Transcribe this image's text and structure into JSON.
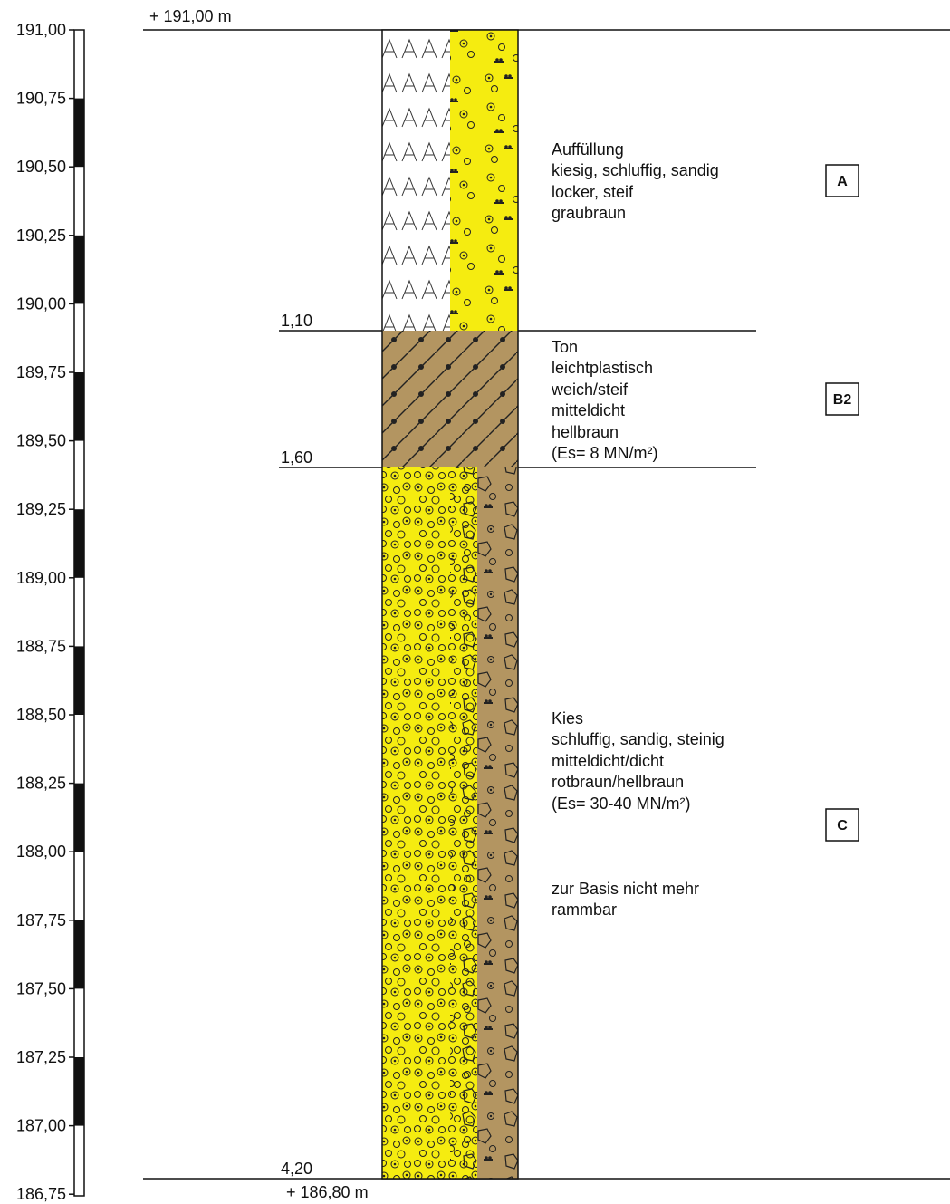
{
  "scale": {
    "ticks": [
      "191,00",
      "190,75",
      "190,50",
      "190,25",
      "190,00",
      "189,75",
      "189,50",
      "189,25",
      "189,00",
      "188,75",
      "188,50",
      "188,25",
      "188,00",
      "187,75",
      "187,50",
      "187,25",
      "187,00",
      "186,75"
    ]
  },
  "elevation": {
    "top": "+ 191,00 m",
    "bottom": "+ 186,80 m"
  },
  "layers": [
    {
      "code": "A",
      "base_depth_label": "1,10",
      "base_depth_m": 1.1,
      "description": [
        "Auffüllung",
        "kiesig, schluffig, sandig",
        "locker, steif",
        "graubraun"
      ]
    },
    {
      "code": "B2",
      "base_depth_label": "1,60",
      "base_depth_m": 1.6,
      "description": [
        "Ton",
        "leichtplastisch",
        "weich/steif",
        "mitteldicht",
        "hellbraun",
        "(Es= 8 MN/m²)"
      ]
    },
    {
      "code": "C",
      "base_depth_label": "4,20",
      "base_depth_m": 4.2,
      "description": [
        "Kies",
        "schluffig, sandig, steinig",
        "mitteldicht/dicht",
        "rotbraun/hellbraun",
        "(Es= 30-40 MN/m²)",
        "",
        "zur Basis nicht mehr",
        "rammbar"
      ]
    }
  ],
  "colors": {
    "gravel_yellow": "#f5ec10",
    "clay_brown": "#b39561",
    "gravel_brown": "#b39561",
    "fill_white": "#ffffff"
  }
}
